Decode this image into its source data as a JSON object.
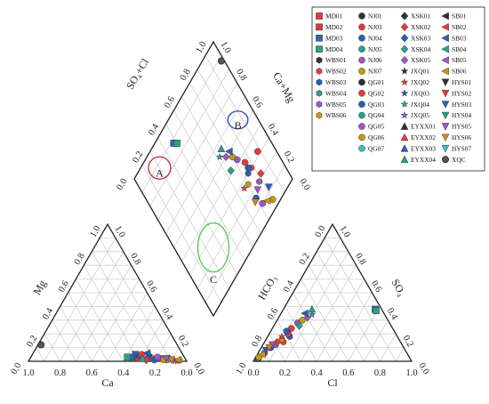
{
  "chart_data": {
    "type": "scatter",
    "title": "",
    "subtitle": "",
    "colors": {
      "MD": "#e43c3c",
      "WBS": "#e05a2a",
      "NJ": "#2b5fb5",
      "QG": "#c49a10",
      "XSK": "#6b3fa0",
      "JXQ": "#7b3f9e",
      "EYXX": "#2aa08c",
      "SB": "#3d5fae",
      "HYS": "#d9822b",
      "XQC": "#555555",
      "zone_A": "#c0393b",
      "zone_B": "#3a4fc4",
      "zone_C": "#55cc55",
      "grid": "#cfcfcf",
      "axis": "#222222"
    },
    "ticks": {
      "cation_left": [
        "1.0",
        "0.8",
        "0.6",
        "0.4",
        "0.2",
        "0.0"
      ],
      "cation_mg": [
        "0.0",
        "0.2",
        "0.4",
        "0.6",
        "0.8",
        "1.0"
      ],
      "cation_ca": [
        "1.0",
        "0.8",
        "0.6",
        "0.4",
        "0.2",
        "0.0"
      ],
      "anion_cl": [
        "0.0",
        "0.2",
        "0.4",
        "0.6",
        "0.8",
        "1.0"
      ],
      "anion_so4": [
        "1.0",
        "0.8",
        "0.6",
        "0.4",
        "0.2",
        "0.0"
      ],
      "anion_hco3": [
        "1.0",
        "0.8",
        "0.6",
        "0.4",
        "0.2",
        "0.0"
      ],
      "diamond_so4cl": [
        "0.0",
        "0.2",
        "0.4",
        "0.6",
        "0.8",
        "1.0"
      ],
      "diamond_camg": [
        "1.0",
        "0.8",
        "0.6",
        "0.4",
        "0.2",
        "0.0"
      ]
    },
    "axis_labels": {
      "mg": "Mg",
      "ca": "Ca",
      "cl": "Cl",
      "hco3": "HCO₃",
      "so4": "SO₄",
      "so4cl": "SO₄+Cl",
      "camg": "Ca+Mg"
    },
    "zones": [
      {
        "name": "A",
        "cx": 0.2,
        "cy": 0.88,
        "rx": 0.1,
        "ry": 0.1
      },
      {
        "name": "B",
        "cx": 0.87,
        "cy": 0.56,
        "rx": 0.09,
        "ry": 0.08
      },
      {
        "name": "C",
        "cx": 0.25,
        "cy": 0.25,
        "rx": 0.14,
        "ry": 0.22
      }
    ],
    "legend": {
      "columns": [
        [
          {
            "label": "MD01",
            "group": "MD",
            "shape": "square",
            "color": "#e43c3c"
          },
          {
            "label": "MD02",
            "group": "MD",
            "shape": "square",
            "color": "#d43a3a"
          },
          {
            "label": "MD03",
            "group": "MD",
            "shape": "square",
            "color": "#2f6ab0"
          },
          {
            "label": "MD04",
            "group": "MD",
            "shape": "square",
            "color": "#2aa08c"
          },
          {
            "label": "WBS01",
            "group": "WBS",
            "shape": "hexagon",
            "color": "#333333"
          },
          {
            "label": "WBS02",
            "group": "WBS",
            "shape": "hexagon",
            "color": "#e43c3c"
          },
          {
            "label": "WBS03",
            "group": "WBS",
            "shape": "hexagon",
            "color": "#2b5fb5"
          },
          {
            "label": "WBS04",
            "group": "WBS",
            "shape": "hexagon",
            "color": "#2aa08c"
          },
          {
            "label": "WBS05",
            "group": "WBS",
            "shape": "hexagon",
            "color": "#9b59c4"
          },
          {
            "label": "WBS06",
            "group": "WBS",
            "shape": "hexagon",
            "color": "#c49a10"
          }
        ],
        [
          {
            "label": "NJ01",
            "group": "NJ",
            "shape": "circle",
            "color": "#333333"
          },
          {
            "label": "NJ03",
            "group": "NJ",
            "shape": "circle",
            "color": "#e43c3c"
          },
          {
            "label": "NJ04",
            "group": "NJ",
            "shape": "circle",
            "color": "#2b5fb5"
          },
          {
            "label": "NJ05",
            "group": "NJ",
            "shape": "circle",
            "color": "#2aa08c"
          },
          {
            "label": "NJ06",
            "group": "NJ",
            "shape": "circle",
            "color": "#9b59c4"
          },
          {
            "label": "NJ07",
            "group": "NJ",
            "shape": "circle",
            "color": "#c49a10"
          },
          {
            "label": "QG01",
            "group": "QG",
            "shape": "circle",
            "color": "#333333"
          },
          {
            "label": "QG02",
            "group": "QG",
            "shape": "circle",
            "color": "#e43c3c"
          },
          {
            "label": "QG03",
            "group": "QG",
            "shape": "circle",
            "color": "#2b5fb5"
          },
          {
            "label": "QG04",
            "group": "QG",
            "shape": "circle",
            "color": "#2aa08c"
          },
          {
            "label": "QG05",
            "group": "QG",
            "shape": "circle",
            "color": "#9b59c4"
          },
          {
            "label": "QG06",
            "group": "QG",
            "shape": "circle",
            "color": "#c49a10"
          },
          {
            "label": "QG07",
            "group": "QG",
            "shape": "circle",
            "color": "#2ec4c4"
          }
        ],
        [
          {
            "label": "XSK01",
            "group": "XSK",
            "shape": "diamond",
            "color": "#333333"
          },
          {
            "label": "XSK02",
            "group": "XSK",
            "shape": "diamond",
            "color": "#e43c3c"
          },
          {
            "label": "XSK03",
            "group": "XSK",
            "shape": "diamond",
            "color": "#2b5fb5"
          },
          {
            "label": "XSK04",
            "group": "XSK",
            "shape": "diamond",
            "color": "#2aa08c"
          },
          {
            "label": "XSK05",
            "group": "XSK",
            "shape": "diamond",
            "color": "#9b59c4"
          },
          {
            "label": "JXQ01",
            "group": "JXQ",
            "shape": "star",
            "color": "#333333"
          },
          {
            "label": "JXQ02",
            "group": "JXQ",
            "shape": "star",
            "color": "#e43c3c"
          },
          {
            "label": "JXQ03",
            "group": "JXQ",
            "shape": "star",
            "color": "#2b5fb5"
          },
          {
            "label": "JXQ04",
            "group": "JXQ",
            "shape": "star",
            "color": "#2aa08c"
          },
          {
            "label": "JXQ05",
            "group": "JXQ",
            "shape": "star",
            "color": "#9b59c4"
          },
          {
            "label": "EYXX01",
            "group": "EYXX",
            "shape": "triangle-up",
            "color": "#333333"
          },
          {
            "label": "EYXX02",
            "group": "EYXX",
            "shape": "triangle-up",
            "color": "#e43c3c"
          },
          {
            "label": "EYXX03",
            "group": "EYXX",
            "shape": "triangle-up",
            "color": "#2b5fb5"
          },
          {
            "label": "EYXX04",
            "group": "EYXX",
            "shape": "triangle-up",
            "color": "#2aa08c"
          }
        ],
        [
          {
            "label": "SB01",
            "group": "SB",
            "shape": "triangle-left",
            "color": "#333333"
          },
          {
            "label": "SB02",
            "group": "SB",
            "shape": "triangle-left",
            "color": "#e43c3c"
          },
          {
            "label": "SB03",
            "group": "SB",
            "shape": "triangle-left",
            "color": "#2b5fb5"
          },
          {
            "label": "SB04",
            "group": "SB",
            "shape": "triangle-left",
            "color": "#2aa08c"
          },
          {
            "label": "SB05",
            "group": "SB",
            "shape": "triangle-left",
            "color": "#9b59c4"
          },
          {
            "label": "SB06",
            "group": "SB",
            "shape": "triangle-left",
            "color": "#c49a10"
          },
          {
            "label": "HYS01",
            "group": "HYS",
            "shape": "triangle-down",
            "color": "#333333"
          },
          {
            "label": "HYS02",
            "group": "HYS",
            "shape": "triangle-down",
            "color": "#e43c3c"
          },
          {
            "label": "HYS03",
            "group": "HYS",
            "shape": "triangle-down",
            "color": "#2b5fb5"
          },
          {
            "label": "HYS04",
            "group": "HYS",
            "shape": "triangle-down",
            "color": "#2aa08c"
          },
          {
            "label": "HYS05",
            "group": "HYS",
            "shape": "triangle-down",
            "color": "#9b59c4"
          },
          {
            "label": "HYS06",
            "group": "HYS",
            "shape": "triangle-down",
            "color": "#d9822b"
          },
          {
            "label": "HYS07",
            "group": "HYS",
            "shape": "triangle-down",
            "color": "#2ec4c4"
          },
          {
            "label": "XQC",
            "group": "XQC",
            "shape": "sphere",
            "color": "#555555"
          }
        ]
      ]
    },
    "series": [
      {
        "name": "XQC",
        "cation": {
          "ca": 0.86,
          "mg": 0.12
        },
        "anion": {
          "cl": 0.02,
          "so4": 0.02
        },
        "diamond": {
          "so4cl": 0.88,
          "camg": 0.02
        },
        "color": "#555555",
        "shape": "sphere"
      },
      {
        "name": "MD03",
        "cation": {
          "ca": 0.33,
          "mg": 0.03
        },
        "anion": {
          "cl": 0.58,
          "so4": 0.38
        },
        "diamond": {
          "so4cl": 0.88,
          "camg": 0.62
        },
        "color": "#2f6ab0",
        "shape": "square"
      },
      {
        "name": "MD04",
        "cation": {
          "ca": 0.36,
          "mg": 0.03
        },
        "anion": {
          "cl": 0.59,
          "so4": 0.37
        },
        "diamond": {
          "so4cl": 0.86,
          "camg": 0.6
        },
        "color": "#2aa08c",
        "shape": "square"
      },
      {
        "name": "WBS02",
        "cation": {
          "ca": 0.3,
          "mg": 0.02
        },
        "anion": {
          "cl": 0.12,
          "so4": 0.14
        },
        "diamond": {
          "so4cl": 0.3,
          "camg": 0.22
        },
        "color": "#e43c3c",
        "shape": "hexagon"
      },
      {
        "name": "WBS03",
        "cation": {
          "ca": 0.28,
          "mg": 0.04
        },
        "anion": {
          "cl": 0.14,
          "so4": 0.18
        },
        "diamond": {
          "so4cl": 0.3,
          "camg": 0.26
        },
        "color": "#2b5fb5",
        "shape": "hexagon"
      },
      {
        "name": "WBS05",
        "cation": {
          "ca": 0.24,
          "mg": 0.02
        },
        "anion": {
          "cl": 0.08,
          "so4": 0.12
        },
        "diamond": {
          "so4cl": 0.2,
          "camg": 0.22
        },
        "color": "#9b59c4",
        "shape": "hexagon"
      },
      {
        "name": "WBS06",
        "cation": {
          "ca": 0.21,
          "mg": 0.03
        },
        "anion": {
          "cl": 0.1,
          "so4": 0.16
        },
        "diamond": {
          "so4cl": 0.26,
          "camg": 0.3
        },
        "color": "#c49a10",
        "shape": "hexagon"
      },
      {
        "name": "NJ03",
        "cation": {
          "ca": 0.18,
          "mg": 0.02
        },
        "anion": {
          "cl": 0.12,
          "so4": 0.24
        },
        "diamond": {
          "so4cl": 0.36,
          "camg": 0.24
        },
        "color": "#e43c3c",
        "shape": "circle"
      },
      {
        "name": "NJ04",
        "cation": {
          "ca": 0.2,
          "mg": 0.01
        },
        "anion": {
          "cl": 0.06,
          "so4": 0.1
        },
        "diamond": {
          "so4cl": 0.16,
          "camg": 0.3
        },
        "color": "#2b5fb5",
        "shape": "circle"
      },
      {
        "name": "NJ06",
        "cation": {
          "ca": 0.15,
          "mg": 0.02
        },
        "anion": {
          "cl": 0.04,
          "so4": 0.06
        },
        "diamond": {
          "so4cl": 0.1,
          "camg": 0.28
        },
        "color": "#9b59c4",
        "shape": "circle"
      },
      {
        "name": "NJ07",
        "cation": {
          "ca": 0.12,
          "mg": 0.01
        },
        "anion": {
          "cl": 0.02,
          "so4": 0.03
        },
        "diamond": {
          "so4cl": 0.05,
          "camg": 0.2
        },
        "color": "#c49a10",
        "shape": "circle"
      },
      {
        "name": "QG02",
        "cation": {
          "ca": 0.26,
          "mg": 0.05
        },
        "anion": {
          "cl": 0.12,
          "so4": 0.2
        },
        "diamond": {
          "so4cl": 0.32,
          "camg": 0.12
        },
        "color": "#e43c3c",
        "shape": "circle"
      },
      {
        "name": "QG03",
        "cation": {
          "ca": 0.22,
          "mg": 0.04
        },
        "anion": {
          "cl": 0.1,
          "so4": 0.22
        },
        "diamond": {
          "so4cl": 0.32,
          "camg": 0.24
        },
        "color": "#2b5fb5",
        "shape": "circle"
      },
      {
        "name": "QG05",
        "cation": {
          "ca": 0.17,
          "mg": 0.03
        },
        "anion": {
          "cl": 0.14,
          "so4": 0.28
        },
        "diamond": {
          "so4cl": 0.42,
          "camg": 0.28
        },
        "color": "#9b59c4",
        "shape": "circle"
      },
      {
        "name": "QG06",
        "cation": {
          "ca": 0.14,
          "mg": 0.01
        },
        "anion": {
          "cl": 0.16,
          "so4": 0.3
        },
        "diamond": {
          "so4cl": 0.46,
          "camg": 0.3
        },
        "color": "#c49a10",
        "shape": "circle"
      },
      {
        "name": "XSK02",
        "cation": {
          "ca": 0.25,
          "mg": 0.01
        },
        "anion": {
          "cl": 0.08,
          "so4": 0.14
        },
        "diamond": {
          "so4cl": 0.22,
          "camg": 0.18
        },
        "color": "#e43c3c",
        "shape": "diamond"
      },
      {
        "name": "XSK04",
        "cation": {
          "ca": 0.1,
          "mg": 0.02
        },
        "anion": {
          "cl": 0.16,
          "so4": 0.26
        },
        "diamond": {
          "so4cl": 0.42,
          "camg": 0.36
        },
        "color": "#2aa08c",
        "shape": "diamond"
      },
      {
        "name": "XSK05",
        "cation": {
          "ca": 0.08,
          "mg": 0.01
        },
        "anion": {
          "cl": 0.18,
          "so4": 0.32
        },
        "diamond": {
          "so4cl": 0.5,
          "camg": 0.34
        },
        "color": "#9b59c4",
        "shape": "diamond"
      },
      {
        "name": "JXQ02",
        "cation": {
          "ca": 0.06,
          "mg": 0.0
        },
        "anion": {
          "cl": 0.09,
          "so4": 0.18
        },
        "diamond": {
          "so4cl": 0.27,
          "camg": 0.34
        },
        "color": "#e43c3c",
        "shape": "star"
      },
      {
        "name": "JXQ04",
        "cation": {
          "ca": 0.04,
          "mg": 0.01
        },
        "anion": {
          "cl": 0.2,
          "so4": 0.34
        },
        "diamond": {
          "so4cl": 0.54,
          "camg": 0.38
        },
        "color": "#2aa08c",
        "shape": "star"
      },
      {
        "name": "EYXX04",
        "cation": {
          "ca": 0.27,
          "mg": 0.02
        },
        "anion": {
          "cl": 0.18,
          "so4": 0.38
        },
        "diamond": {
          "so4cl": 0.56,
          "camg": 0.34
        },
        "color": "#2aa08c",
        "shape": "triangle-up"
      },
      {
        "name": "SB03",
        "cation": {
          "ca": 0.22,
          "mg": 0.06
        },
        "anion": {
          "cl": 0.15,
          "so4": 0.35
        },
        "diamond": {
          "so4cl": 0.5,
          "camg": 0.3
        },
        "color": "#2b5fb5",
        "shape": "triangle-left"
      },
      {
        "name": "SB06",
        "cation": {
          "ca": 0.05,
          "mg": 0.01
        },
        "anion": {
          "cl": 0.03,
          "so4": 0.05
        },
        "diamond": {
          "so4cl": 0.08,
          "camg": 0.24
        },
        "color": "#c49a10",
        "shape": "triangle-left"
      },
      {
        "name": "HYS03",
        "cation": {
          "ca": 0.3,
          "mg": 0.05
        },
        "anion": {
          "cl": 0.04,
          "so4": 0.08
        },
        "diamond": {
          "so4cl": 0.12,
          "camg": 0.18
        },
        "color": "#2b5fb5",
        "shape": "triangle-down"
      },
      {
        "name": "HYS05",
        "cation": {
          "ca": 0.12,
          "mg": 0.02
        },
        "anion": {
          "cl": 0.06,
          "so4": 0.12
        },
        "diamond": {
          "so4cl": 0.18,
          "camg": 0.26
        },
        "color": "#9b59c4",
        "shape": "triangle-down"
      },
      {
        "name": "HYS06",
        "cation": {
          "ca": 0.09,
          "mg": 0.01
        },
        "anion": {
          "cl": 0.05,
          "so4": 0.1
        },
        "diamond": {
          "so4cl": 0.15,
          "camg": 0.32
        },
        "color": "#d9822b",
        "shape": "triangle-down"
      }
    ]
  }
}
